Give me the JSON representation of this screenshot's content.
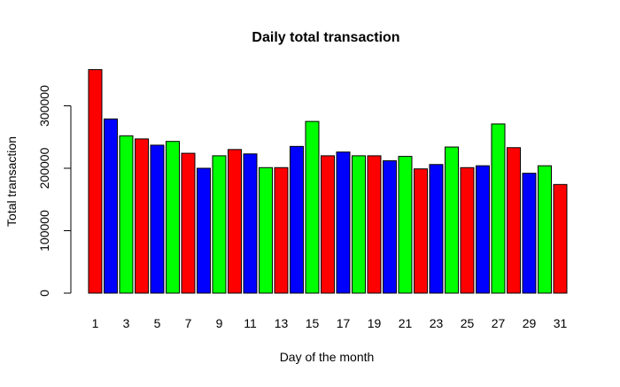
{
  "chart_data": {
    "type": "bar",
    "title": "Daily total transaction",
    "xlabel": "Day of the month",
    "ylabel": "Total transaction",
    "categories": [
      "1",
      "2",
      "3",
      "4",
      "5",
      "6",
      "7",
      "8",
      "9",
      "10",
      "11",
      "12",
      "13",
      "14",
      "15",
      "16",
      "17",
      "18",
      "19",
      "20",
      "21",
      "22",
      "23",
      "24",
      "25",
      "26",
      "27",
      "28",
      "29",
      "30",
      "31"
    ],
    "values": [
      358000,
      279000,
      252000,
      247000,
      237000,
      243000,
      224000,
      200000,
      220000,
      230000,
      223000,
      201000,
      201000,
      235000,
      275000,
      220000,
      226000,
      220000,
      220000,
      212000,
      219000,
      199000,
      206000,
      234000,
      201000,
      204000,
      271000,
      233000,
      192000,
      204000,
      174000
    ],
    "bar_colors": [
      "#ff0000",
      "#0000ff",
      "#00ff00"
    ],
    "x_tick_labels": [
      "1",
      "3",
      "5",
      "7",
      "9",
      "11",
      "13",
      "15",
      "17",
      "19",
      "21",
      "23",
      "25",
      "27",
      "29",
      "31"
    ],
    "y_ticks": [
      0,
      100000,
      200000,
      300000
    ],
    "y_tick_labels": [
      "0",
      "100000",
      "200000",
      "300000"
    ],
    "ylim": [
      0,
      360000
    ],
    "grid": false,
    "legend": "none"
  }
}
